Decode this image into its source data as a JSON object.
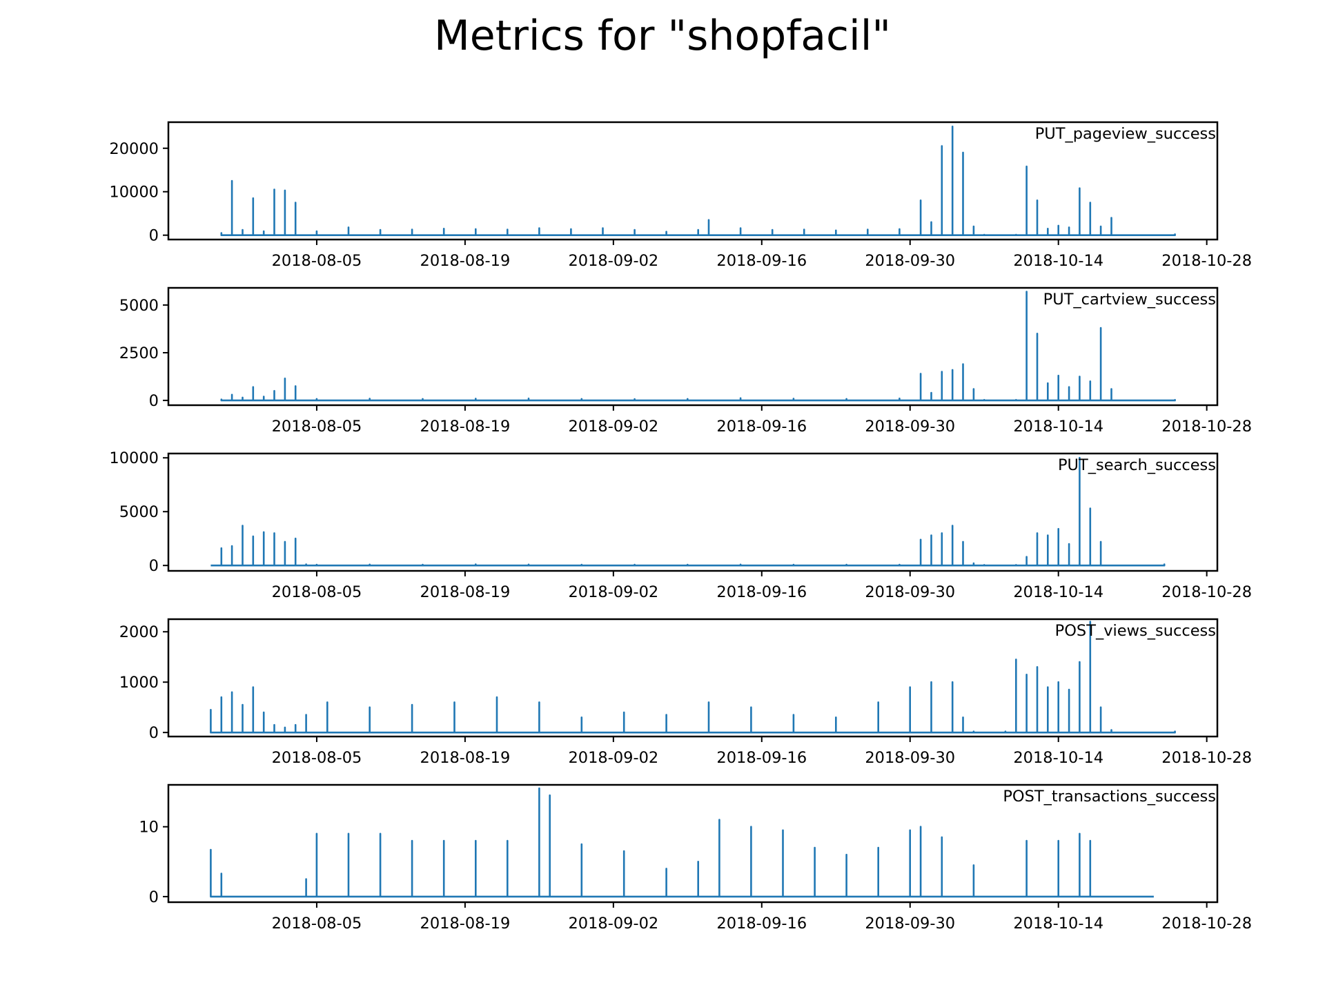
{
  "title": "Metrics for \"shopfacil\"",
  "colors": {
    "series": "#1f77b4",
    "axes": "#000000",
    "background": "#ffffff"
  },
  "chart_data": [
    {
      "type": "line",
      "label": "PUT_pageview_success",
      "x_ticks": [
        "2018-08-05",
        "2018-08-19",
        "2018-09-02",
        "2018-09-16",
        "2018-09-30",
        "2018-10-14",
        "2018-10-28"
      ],
      "x_range": [
        "2018-07-22",
        "2018-10-29"
      ],
      "y_ticks": [
        0,
        10000,
        20000
      ],
      "ylim": [
        -1000,
        26000
      ],
      "series": [
        {
          "x": [
            "2018-07-27",
            "2018-07-28",
            "2018-07-29",
            "2018-07-30",
            "2018-07-31",
            "2018-08-01",
            "2018-08-02",
            "2018-08-03",
            "2018-08-05",
            "2018-08-08",
            "2018-08-11",
            "2018-08-14",
            "2018-08-17",
            "2018-08-20",
            "2018-08-23",
            "2018-08-26",
            "2018-08-29",
            "2018-09-01",
            "2018-09-04",
            "2018-09-07",
            "2018-09-10",
            "2018-09-11",
            "2018-09-14",
            "2018-09-17",
            "2018-09-20",
            "2018-09-23",
            "2018-09-26",
            "2018-09-29",
            "2018-10-01",
            "2018-10-02",
            "2018-10-03",
            "2018-10-04",
            "2018-10-05",
            "2018-10-06",
            "2018-10-07",
            "2018-10-10",
            "2018-10-11",
            "2018-10-12",
            "2018-10-13",
            "2018-10-14",
            "2018-10-15",
            "2018-10-16",
            "2018-10-17",
            "2018-10-18",
            "2018-10-19",
            "2018-10-25"
          ],
          "y": [
            500,
            12500,
            1200,
            8500,
            900,
            10500,
            10300,
            7500,
            900,
            1800,
            1200,
            1300,
            1500,
            1400,
            1300,
            1600,
            1400,
            1600,
            1200,
            800,
            1200,
            3500,
            1600,
            1200,
            1300,
            1100,
            1300,
            1400,
            8000,
            3000,
            20500,
            25000,
            19000,
            2000,
            100,
            100,
            15800,
            8000,
            1500,
            2200,
            1800,
            10800,
            7500,
            2000,
            4000,
            200
          ]
        }
      ]
    },
    {
      "type": "line",
      "label": "PUT_cartview_success",
      "x_ticks": [
        "2018-08-05",
        "2018-08-19",
        "2018-09-02",
        "2018-09-16",
        "2018-09-30",
        "2018-10-14",
        "2018-10-28"
      ],
      "x_range": [
        "2018-07-22",
        "2018-10-29"
      ],
      "y_ticks": [
        0,
        2500,
        5000
      ],
      "ylim": [
        -250,
        5900
      ],
      "series": [
        {
          "x": [
            "2018-07-27",
            "2018-07-28",
            "2018-07-29",
            "2018-07-30",
            "2018-07-31",
            "2018-08-01",
            "2018-08-02",
            "2018-08-03",
            "2018-08-05",
            "2018-08-10",
            "2018-08-15",
            "2018-08-20",
            "2018-08-25",
            "2018-08-30",
            "2018-09-04",
            "2018-09-09",
            "2018-09-14",
            "2018-09-19",
            "2018-09-24",
            "2018-09-29",
            "2018-10-01",
            "2018-10-02",
            "2018-10-03",
            "2018-10-04",
            "2018-10-05",
            "2018-10-06",
            "2018-10-07",
            "2018-10-10",
            "2018-10-11",
            "2018-10-12",
            "2018-10-13",
            "2018-10-14",
            "2018-10-15",
            "2018-10-16",
            "2018-10-17",
            "2018-10-18",
            "2018-10-19",
            "2018-10-25"
          ],
          "y": [
            50,
            300,
            150,
            700,
            200,
            500,
            1150,
            750,
            80,
            90,
            80,
            90,
            100,
            80,
            70,
            80,
            120,
            90,
            80,
            100,
            1400,
            400,
            1500,
            1600,
            1900,
            600,
            30,
            30,
            5700,
            3500,
            900,
            1300,
            700,
            1250,
            1000,
            3800,
            600,
            30
          ]
        }
      ]
    },
    {
      "type": "line",
      "label": "PUT_search_success",
      "x_ticks": [
        "2018-08-05",
        "2018-08-19",
        "2018-09-02",
        "2018-09-16",
        "2018-09-30",
        "2018-10-14",
        "2018-10-28"
      ],
      "x_range": [
        "2018-07-22",
        "2018-10-29"
      ],
      "y_ticks": [
        0,
        5000,
        10000
      ],
      "ylim": [
        -500,
        10400
      ],
      "series": [
        {
          "x": [
            "2018-07-26",
            "2018-07-27",
            "2018-07-28",
            "2018-07-29",
            "2018-07-30",
            "2018-07-31",
            "2018-08-01",
            "2018-08-02",
            "2018-08-03",
            "2018-08-04",
            "2018-08-05",
            "2018-08-10",
            "2018-08-15",
            "2018-08-20",
            "2018-08-25",
            "2018-08-30",
            "2018-09-04",
            "2018-09-09",
            "2018-09-14",
            "2018-09-19",
            "2018-09-24",
            "2018-09-29",
            "2018-10-01",
            "2018-10-02",
            "2018-10-03",
            "2018-10-04",
            "2018-10-05",
            "2018-10-06",
            "2018-10-07",
            "2018-10-10",
            "2018-10-11",
            "2018-10-12",
            "2018-10-13",
            "2018-10-14",
            "2018-10-15",
            "2018-10-16",
            "2018-10-17",
            "2018-10-18",
            "2018-10-24"
          ],
          "y": [
            0,
            1600,
            1800,
            3700,
            2700,
            3100,
            3000,
            2200,
            2500,
            100,
            80,
            90,
            80,
            100,
            90,
            80,
            70,
            80,
            90,
            80,
            70,
            80,
            2400,
            2800,
            3000,
            3700,
            2200,
            200,
            50,
            50,
            800,
            3000,
            2800,
            3400,
            2000,
            10000,
            5300,
            2200,
            100
          ]
        }
      ]
    },
    {
      "type": "line",
      "label": "POST_views_success",
      "x_ticks": [
        "2018-08-05",
        "2018-08-19",
        "2018-09-02",
        "2018-09-16",
        "2018-09-30",
        "2018-10-14",
        "2018-10-28"
      ],
      "x_range": [
        "2018-07-22",
        "2018-10-29"
      ],
      "y_ticks": [
        0,
        1000,
        2000
      ],
      "ylim": [
        -80,
        2250
      ],
      "series": [
        {
          "x": [
            "2018-07-26",
            "2018-07-27",
            "2018-07-28",
            "2018-07-29",
            "2018-07-30",
            "2018-07-31",
            "2018-08-01",
            "2018-08-02",
            "2018-08-03",
            "2018-08-04",
            "2018-08-06",
            "2018-08-10",
            "2018-08-14",
            "2018-08-18",
            "2018-08-22",
            "2018-08-26",
            "2018-08-30",
            "2018-09-03",
            "2018-09-07",
            "2018-09-11",
            "2018-09-15",
            "2018-09-19",
            "2018-09-23",
            "2018-09-27",
            "2018-09-30",
            "2018-10-02",
            "2018-10-04",
            "2018-10-05",
            "2018-10-06",
            "2018-10-09",
            "2018-10-10",
            "2018-10-11",
            "2018-10-12",
            "2018-10-13",
            "2018-10-14",
            "2018-10-15",
            "2018-10-16",
            "2018-10-17",
            "2018-10-18",
            "2018-10-19",
            "2018-10-25"
          ],
          "y": [
            450,
            700,
            800,
            550,
            900,
            400,
            150,
            100,
            150,
            350,
            600,
            500,
            550,
            600,
            700,
            600,
            300,
            400,
            350,
            600,
            500,
            350,
            300,
            600,
            900,
            1000,
            1000,
            300,
            20,
            20,
            1450,
            1150,
            1300,
            900,
            1000,
            850,
            1400,
            2200,
            500,
            50,
            20
          ]
        }
      ]
    },
    {
      "type": "line",
      "label": "POST_transactions_success",
      "x_ticks": [
        "2018-08-05",
        "2018-08-19",
        "2018-09-02",
        "2018-09-16",
        "2018-09-30",
        "2018-10-14",
        "2018-10-28"
      ],
      "x_range": [
        "2018-07-22",
        "2018-10-29"
      ],
      "y_ticks": [
        0,
        10
      ],
      "ylim": [
        -0.8,
        16
      ],
      "series": [
        {
          "x": [
            "2018-07-26",
            "2018-07-27",
            "2018-08-04",
            "2018-08-05",
            "2018-08-08",
            "2018-08-11",
            "2018-08-14",
            "2018-08-17",
            "2018-08-20",
            "2018-08-23",
            "2018-08-26",
            "2018-08-27",
            "2018-08-30",
            "2018-09-03",
            "2018-09-07",
            "2018-09-10",
            "2018-09-12",
            "2018-09-15",
            "2018-09-18",
            "2018-09-21",
            "2018-09-24",
            "2018-09-27",
            "2018-09-30",
            "2018-10-01",
            "2018-10-03",
            "2018-10-06",
            "2018-10-07",
            "2018-10-10",
            "2018-10-11",
            "2018-10-14",
            "2018-10-16",
            "2018-10-17",
            "2018-10-23"
          ],
          "y": [
            6.7,
            3.3,
            2.5,
            9,
            9,
            9,
            8,
            8,
            8,
            8,
            15.5,
            14.5,
            7.5,
            6.5,
            4,
            5,
            11,
            10,
            9.5,
            7,
            6,
            7,
            9.5,
            10,
            8.5,
            4.5,
            0,
            0,
            8,
            8,
            9,
            8,
            0
          ]
        }
      ]
    }
  ]
}
